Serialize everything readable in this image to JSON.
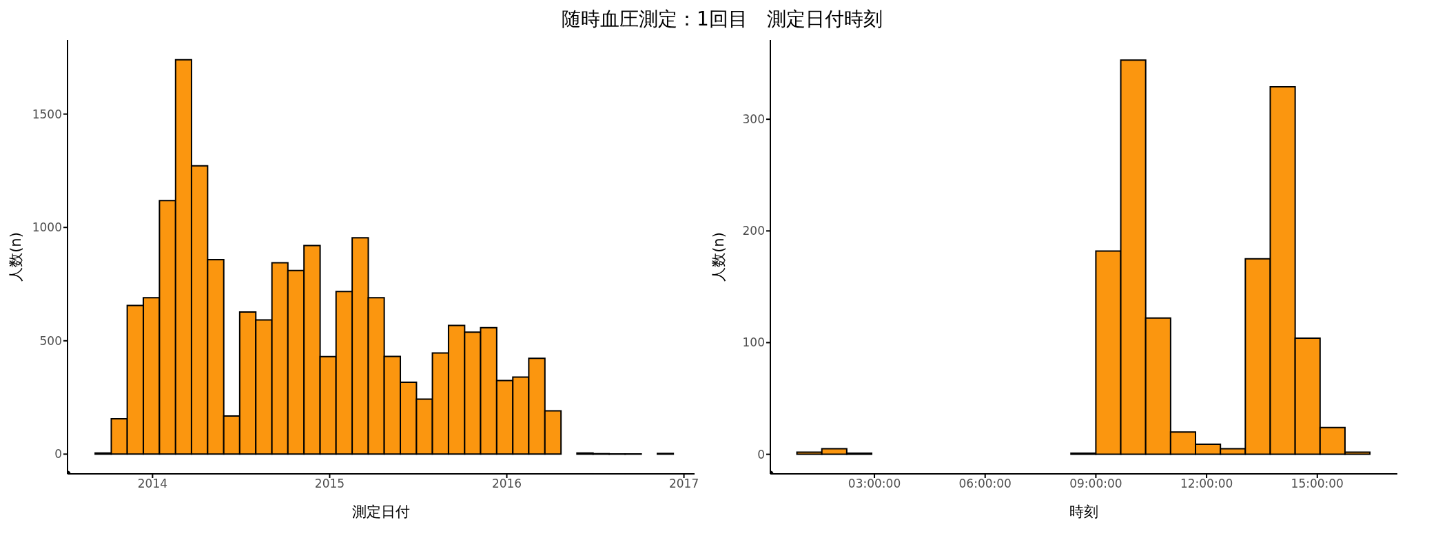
{
  "chart_data": [
    {
      "type": "histogram",
      "title": "随時血圧測定：1回目　測定日付時刻",
      "xlabel": "測定日付",
      "ylabel": "人数(n)",
      "color": "#fb960f",
      "bins": [
        2013.676,
        2013.767,
        2013.857,
        2013.948,
        2014.039,
        2014.13,
        2014.22,
        2014.311,
        2014.402,
        2014.492,
        2014.583,
        2014.674,
        2014.764,
        2014.855,
        2014.946,
        2015.036,
        2015.127,
        2015.218,
        2015.308,
        2015.399,
        2015.49,
        2015.58,
        2015.671,
        2015.762,
        2015.852,
        2015.943,
        2016.034,
        2016.124,
        2016.215,
        2016.306,
        2016.396,
        2016.487,
        2016.578,
        2016.668,
        2016.759,
        2016.85,
        2016.94
      ],
      "values": [
        5,
        156,
        656,
        690,
        1118,
        1740,
        1272,
        858,
        168,
        627,
        592,
        844,
        810,
        920,
        430,
        717,
        954,
        690,
        431,
        317,
        243,
        446,
        568,
        538,
        558,
        325,
        340,
        423,
        191,
        0,
        5,
        2,
        1,
        1,
        0,
        3
      ],
      "xlim": [
        2013.52,
        2017.06
      ],
      "xticks": [
        2014,
        2015,
        2016,
        2017
      ],
      "ylim": [
        -87,
        1827
      ],
      "yticks": [
        0,
        500,
        1000,
        1500
      ],
      "grid": false
    },
    {
      "type": "histogram",
      "xlabel": "時刻",
      "ylabel": "人数(n)",
      "color": "#fb960f",
      "bins": [
        0.9,
        1.575,
        2.25,
        2.925,
        3.6,
        4.275,
        4.95,
        5.625,
        6.3,
        6.975,
        7.65,
        8.325,
        9.0,
        9.675,
        10.35,
        11.025,
        11.7,
        12.375,
        13.05,
        13.725,
        14.4,
        15.075,
        15.75,
        16.425
      ],
      "values": [
        2,
        5,
        1,
        0,
        0,
        0,
        0,
        0,
        0,
        0,
        0,
        1,
        182,
        353,
        122,
        20,
        9,
        5,
        175,
        329,
        104,
        24,
        2
      ],
      "xlim": [
        0.18,
        17.17
      ],
      "xticks": [
        {
          "value": 3,
          "label": "03:00:00"
        },
        {
          "value": 6,
          "label": "06:00:00"
        },
        {
          "value": 9,
          "label": "09:00:00"
        },
        {
          "value": 12,
          "label": "12:00:00"
        },
        {
          "value": 15,
          "label": "15:00:00"
        }
      ],
      "ylim": [
        -17.5,
        371
      ],
      "yticks": [
        0,
        100,
        200,
        300
      ],
      "grid": false
    }
  ]
}
